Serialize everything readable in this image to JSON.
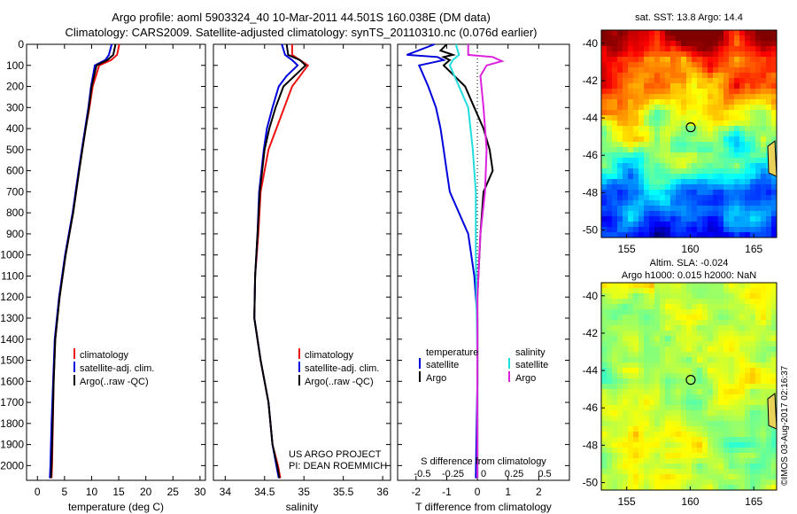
{
  "header": {
    "line1": "Argo profile: aoml 5903324_40 10-Mar-2011 44.501S 160.038E (DM data)",
    "line2": "Climatology: CARS2009. Satellite-adjusted climatology: synTS_20110310.nc (0.076d earlier)"
  },
  "colors": {
    "climatology": "#ee1111",
    "satellite": "#0000dd",
    "argo": "#000000",
    "sat_salinity": "#22dddd",
    "argo_salinity": "#dd22dd"
  },
  "chart_data": [
    {
      "type": "line",
      "xlabel": "temperature (deg C)",
      "ylabel": "",
      "xlim": [
        -2,
        31
      ],
      "ylim": [
        2070,
        0
      ],
      "xticks": [
        0,
        5,
        10,
        15,
        20,
        25,
        30
      ],
      "yticks": [
        0,
        100,
        200,
        300,
        400,
        500,
        600,
        700,
        800,
        900,
        1000,
        1100,
        1200,
        1300,
        1400,
        1500,
        1600,
        1700,
        1800,
        1900,
        2000
      ],
      "legend": {
        "placement": "bottom-center",
        "entries": [
          "climatology",
          "satellite-adj. clim.",
          "Argo(..raw -QC)"
        ]
      },
      "series": [
        {
          "name": "climatology",
          "color": "#ee1111",
          "x": [
            15.1,
            14.7,
            13.6,
            11.4,
            10.2,
            9.6,
            8.9,
            8.3,
            7.7,
            6.6,
            5.2,
            4.1,
            3.3,
            3.0,
            2.85,
            2.7,
            2.6
          ],
          "y": [
            0,
            50,
            75,
            100,
            200,
            300,
            400,
            500,
            600,
            800,
            1000,
            1200,
            1400,
            1600,
            1800,
            2000,
            2060
          ]
        },
        {
          "name": "satellite-adj. clim.",
          "color": "#0000dd",
          "x": [
            13.7,
            13.2,
            12.5,
            10.6,
            9.9,
            9.4,
            8.8,
            8.2,
            7.6,
            6.5,
            5.1,
            4.0,
            3.2,
            2.9,
            2.6,
            2.4,
            2.3
          ],
          "y": [
            0,
            50,
            75,
            100,
            200,
            300,
            400,
            500,
            600,
            800,
            1000,
            1200,
            1400,
            1600,
            1800,
            2000,
            2060
          ]
        },
        {
          "name": "Argo(..raw -QC)",
          "color": "#000000",
          "x": [
            14.4,
            14.0,
            12.9,
            10.9,
            10.0,
            9.5,
            8.9,
            8.3,
            7.7,
            6.6,
            5.2,
            4.1,
            3.3,
            3.0,
            2.8,
            2.6,
            2.5
          ],
          "y": [
            0,
            50,
            75,
            100,
            200,
            300,
            400,
            500,
            600,
            800,
            1000,
            1200,
            1400,
            1600,
            1800,
            2000,
            2060
          ]
        }
      ]
    },
    {
      "type": "line",
      "xlabel": "salinity",
      "ylabel": "",
      "xlim": [
        33.85,
        36.1
      ],
      "ylim": [
        2070,
        0
      ],
      "xticks": [
        34,
        34.5,
        35,
        35.5,
        36
      ],
      "legend": {
        "placement": "bottom-center",
        "entries": [
          "climatology",
          "satellite-adj. clim.",
          "Argo(..raw -QC)"
        ]
      },
      "annotation": [
        "US ARGO PROJECT",
        "PI: DEAN ROEMMICH"
      ],
      "series": [
        {
          "name": "climatology",
          "color": "#ee1111",
          "x": [
            34.85,
            34.85,
            34.95,
            35.05,
            34.95,
            34.85,
            34.75,
            34.65,
            34.55,
            34.45,
            34.42,
            34.38,
            34.37,
            34.45,
            34.55,
            34.6,
            34.67,
            34.7
          ],
          "y": [
            0,
            50,
            75,
            100,
            150,
            200,
            300,
            400,
            500,
            700,
            900,
            1100,
            1300,
            1500,
            1700,
            1900,
            2000,
            2060
          ]
        },
        {
          "name": "satellite-adj. clim.",
          "color": "#0000dd",
          "x": [
            34.72,
            34.76,
            34.85,
            34.92,
            34.78,
            34.68,
            34.6,
            34.53,
            34.49,
            34.43,
            34.41,
            34.38,
            34.37,
            34.45,
            34.55,
            34.6,
            34.65,
            34.68
          ],
          "y": [
            0,
            50,
            75,
            100,
            150,
            200,
            300,
            400,
            500,
            700,
            900,
            1100,
            1300,
            1500,
            1700,
            1900,
            2000,
            2060
          ]
        },
        {
          "name": "Argo(..raw -QC)",
          "color": "#000000",
          "x": [
            34.78,
            34.8,
            34.95,
            35.02,
            34.88,
            34.74,
            34.64,
            34.56,
            34.5,
            34.44,
            34.41,
            34.38,
            34.37,
            34.45,
            34.55,
            34.6,
            34.66,
            34.69
          ],
          "y": [
            0,
            50,
            75,
            100,
            150,
            200,
            300,
            400,
            500,
            700,
            900,
            1100,
            1300,
            1500,
            1700,
            1900,
            2000,
            2060
          ]
        }
      ]
    },
    {
      "type": "line",
      "xlabel": "T difference from climatology",
      "xlabel_top": "S difference from climatology",
      "xlim": [
        -2.6,
        3.0
      ],
      "ylim": [
        2070,
        0
      ],
      "xticks": [
        -2,
        -1,
        0,
        1,
        2
      ],
      "xticklabels": [
        "-2",
        "-1",
        "0",
        "1",
        "2"
      ],
      "s_ticks": [
        -0.5,
        -0.25,
        0,
        0.25,
        0.5
      ],
      "s_ticklabels": [
        "-0.5",
        "-0.25",
        "0",
        "0.25",
        "0.5"
      ],
      "legend": {
        "placement": "bottom-center",
        "temperature_header": "temperature",
        "salinity_header": "salinity",
        "temperature_entries": [
          "satellite",
          "Argo"
        ],
        "salinity_entries": [
          "satellite",
          "Argo"
        ]
      },
      "series": [
        {
          "name": "satellite",
          "color": "#0000dd",
          "x": [
            -1.4,
            -2.3,
            -1.3,
            -1.1,
            -1.9,
            -1.6,
            -1.35,
            -1.2,
            -1.1,
            -1.0,
            -0.9,
            -0.3,
            -0.1,
            0.0,
            0.0,
            -0.05
          ],
          "y": [
            0,
            50,
            60,
            75,
            100,
            200,
            300,
            400,
            500,
            600,
            700,
            900,
            1100,
            1300,
            1600,
            2060
          ]
        },
        {
          "name": "Argo",
          "color": "#000000",
          "x": [
            -1.0,
            -1.2,
            -0.8,
            -1.1,
            -0.9,
            -1.1,
            -0.4,
            -0.1,
            0.2,
            0.4,
            0.5,
            0.2,
            0.1,
            0.0,
            0.0,
            0.0
          ],
          "y": [
            0,
            30,
            50,
            60,
            75,
            100,
            200,
            300,
            400,
            500,
            600,
            700,
            900,
            1200,
            1600,
            2060
          ]
        },
        {
          "name": "satellite (salinity)",
          "color": "#22dddd",
          "x": [
            -0.7,
            -0.6,
            -0.8,
            -0.9,
            -0.6,
            -0.3,
            -0.15,
            -0.05,
            -0.05,
            0.0,
            0.0
          ],
          "y": [
            0,
            50,
            75,
            100,
            200,
            300,
            500,
            700,
            1000,
            1500,
            2060
          ]
        },
        {
          "name": "Argo (salinity)",
          "color": "#dd22dd",
          "x": [
            -0.3,
            -0.3,
            0.5,
            0.8,
            0.3,
            0.1,
            0.2,
            0.3,
            0.25,
            0.1,
            0.0,
            0.0
          ],
          "y": [
            0,
            50,
            60,
            80,
            100,
            150,
            300,
            500,
            700,
            900,
            1200,
            2060
          ]
        }
      ]
    },
    {
      "type": "heatmap",
      "title": "sat. SST: 13.8 Argo: 14.4",
      "xlim": [
        153,
        166.8
      ],
      "ylim": [
        -50.4,
        -39.3
      ],
      "xticks": [
        155,
        160,
        165
      ],
      "yticks": [
        -40,
        -42,
        -44,
        -46,
        -48,
        -50
      ],
      "marker": {
        "x": 160.038,
        "y": -44.501
      }
    },
    {
      "type": "heatmap",
      "title": "Altim. SLA: -0.024",
      "subtitle": "Argo h1000: 0.015 h2000: NaN",
      "xlim": [
        153,
        166.8
      ],
      "ylim": [
        -50.4,
        -39.3
      ],
      "xticks": [
        155,
        160,
        165
      ],
      "yticks": [
        -40,
        -42,
        -44,
        -46,
        -48,
        -50
      ],
      "marker": {
        "x": 160.038,
        "y": -44.501
      }
    }
  ],
  "footer_stamp": "©IMOS 03-Aug-2017 02:16:37"
}
